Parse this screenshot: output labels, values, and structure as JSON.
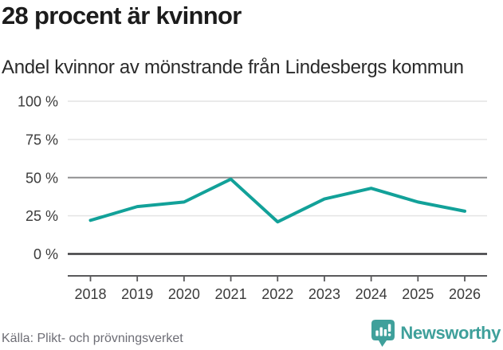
{
  "header": {
    "title": "28 procent är kvinnor",
    "subtitle": "Andel kvinnor av mönstrande från Lindesbergs kommun"
  },
  "chart_data": {
    "type": "line",
    "title": "28 procent är kvinnor",
    "subtitle": "Andel kvinnor av mönstrande från Lindesbergs kommun",
    "categories": [
      "2018",
      "2019",
      "2020",
      "2021",
      "2022",
      "2023",
      "2024",
      "2025",
      "2026"
    ],
    "series": [
      {
        "name": "Andel kvinnor av mönstrande",
        "values": [
          22,
          31,
          34,
          49,
          21,
          36,
          43,
          34,
          28
        ]
      }
    ],
    "unit": "%",
    "ylim": [
      0,
      100
    ],
    "yticks": [
      0,
      25,
      50,
      75,
      100
    ],
    "ytick_suffix": " %",
    "grid": "horizontal",
    "legend": "none",
    "line_color": "#12a199",
    "gridline_colors": {
      "zero": "#3e3e40",
      "mid": "#8f8f91",
      "regular": "#e4e4e4"
    },
    "axis_color": "#5a5a5c"
  },
  "footer": {
    "source": "Källa: Plikt- och prövningsverket",
    "brand": "Newsworthy"
  },
  "colors": {
    "accent": "#12a199",
    "brand": "#3fa09b",
    "text_dark": "#1c1c1c",
    "text_axis": "#3b3b3b",
    "text_muted": "#6d6d75"
  }
}
